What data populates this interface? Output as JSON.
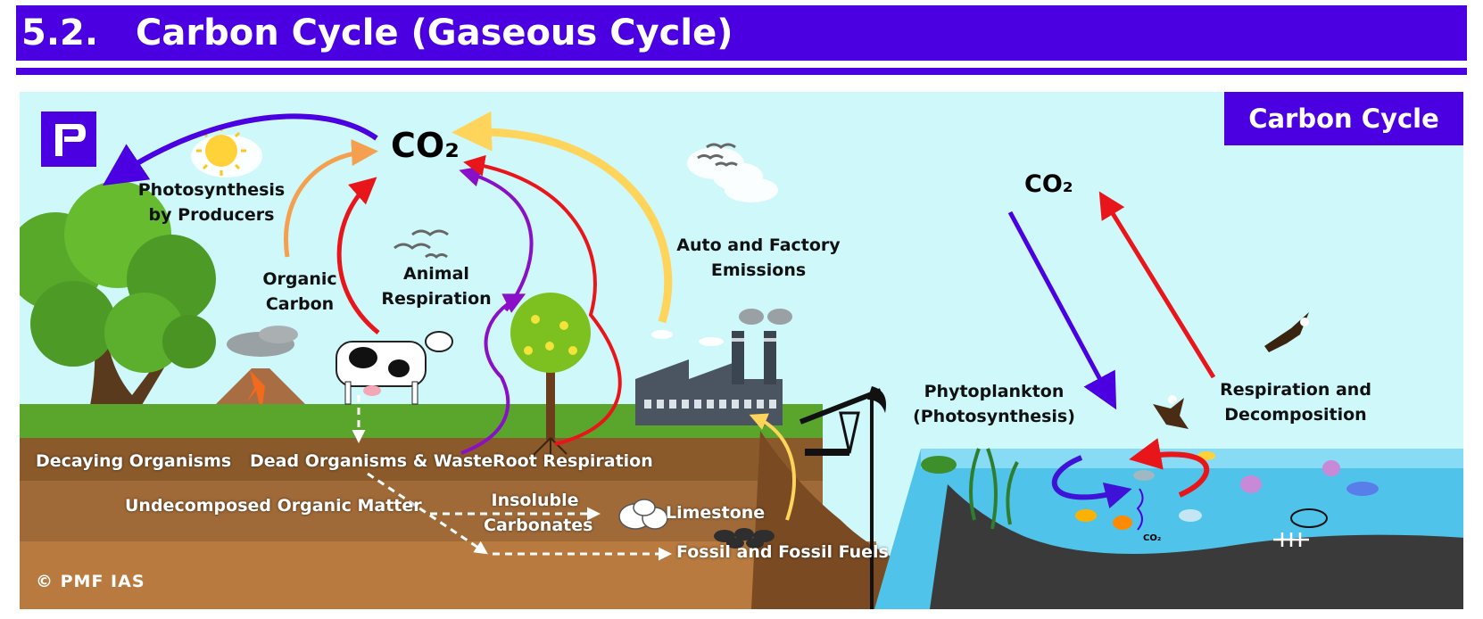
{
  "header": {
    "number": "5.2.",
    "title": "Carbon Cycle (Gaseous Cycle)"
  },
  "badge": "Carbon Cycle",
  "copyright": "© PMF IAS",
  "co2_main": "CO₂",
  "co2_ocean": "CO₂",
  "co2_water": "CO₂",
  "labels": {
    "photosynthesis": [
      "Photosynthesis",
      "by Producers"
    ],
    "organic_carbon": [
      "Organic",
      "Carbon"
    ],
    "animal_respiration": [
      "Animal",
      "Respiration"
    ],
    "auto_factory": [
      "Auto and Factory",
      "Emissions"
    ],
    "phytoplankton": [
      "Phytoplankton",
      "(Photosynthesis)"
    ],
    "respiration_decomposition": [
      "Respiration and",
      "Decomposition"
    ],
    "decaying": "Decaying  Organisms",
    "dead_organisms": "Dead Organisms & Waste",
    "root_respiration": "Root Respiration",
    "undecomposed": "Undecomposed Organic Matter",
    "insoluble": [
      "Insoluble",
      "Carbonates"
    ],
    "limestone": "Limestone",
    "fossil": "Fossil and Fossil Fuels"
  },
  "colors": {
    "brand": "#4a00e0",
    "sky": "#cff8fb",
    "soil": "#8b5a2b",
    "water": "#4fc3ea",
    "red_arrow": "#e8161b",
    "orange_arrow": "#f4a04e",
    "yellow_arrow": "#ffd45a",
    "purple_arrow": "#8a10c8"
  }
}
